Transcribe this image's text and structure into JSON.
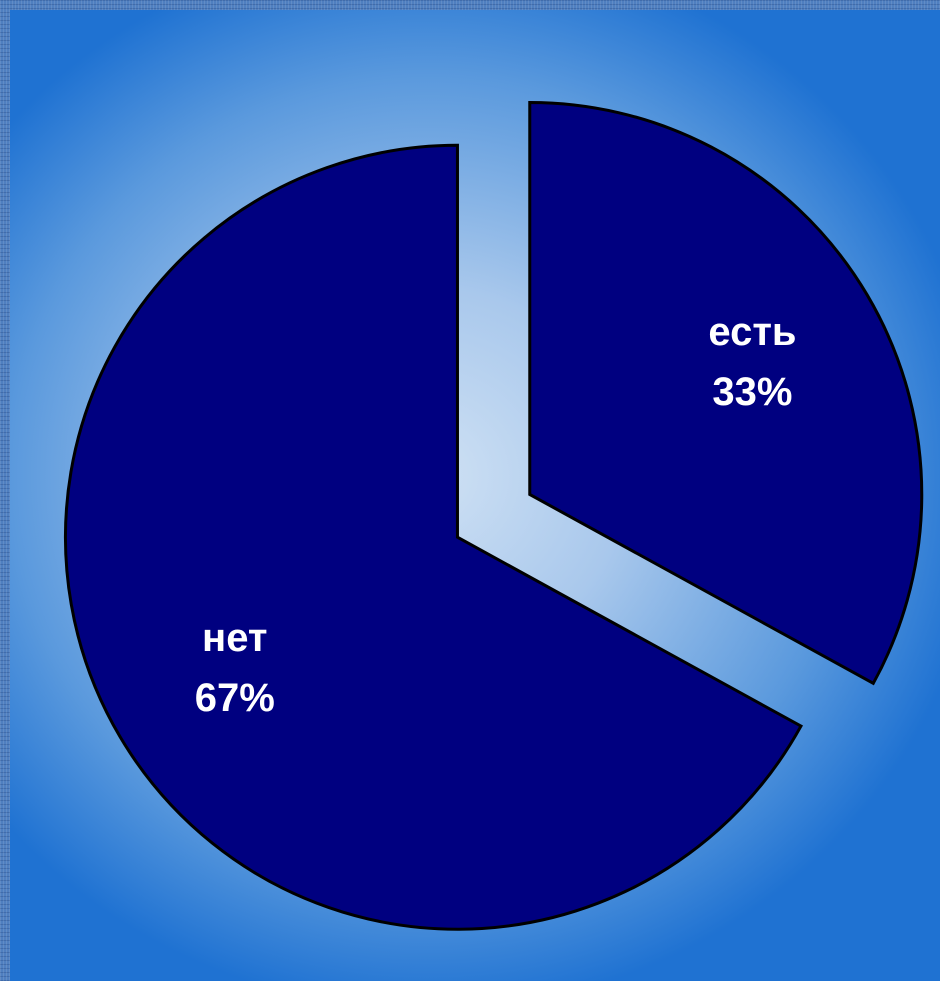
{
  "colors": {
    "slice_fill": "#000080",
    "slice_stroke": "#000000",
    "label_color": "#ffffff"
  },
  "chart_data": {
    "type": "pie",
    "exploded": true,
    "start_angle_deg": 0,
    "direction": "clockwise",
    "slices": [
      {
        "label": "есть",
        "value": 33,
        "value_label": "33%"
      },
      {
        "label": "нет",
        "value": 67,
        "value_label": "67%"
      }
    ]
  }
}
